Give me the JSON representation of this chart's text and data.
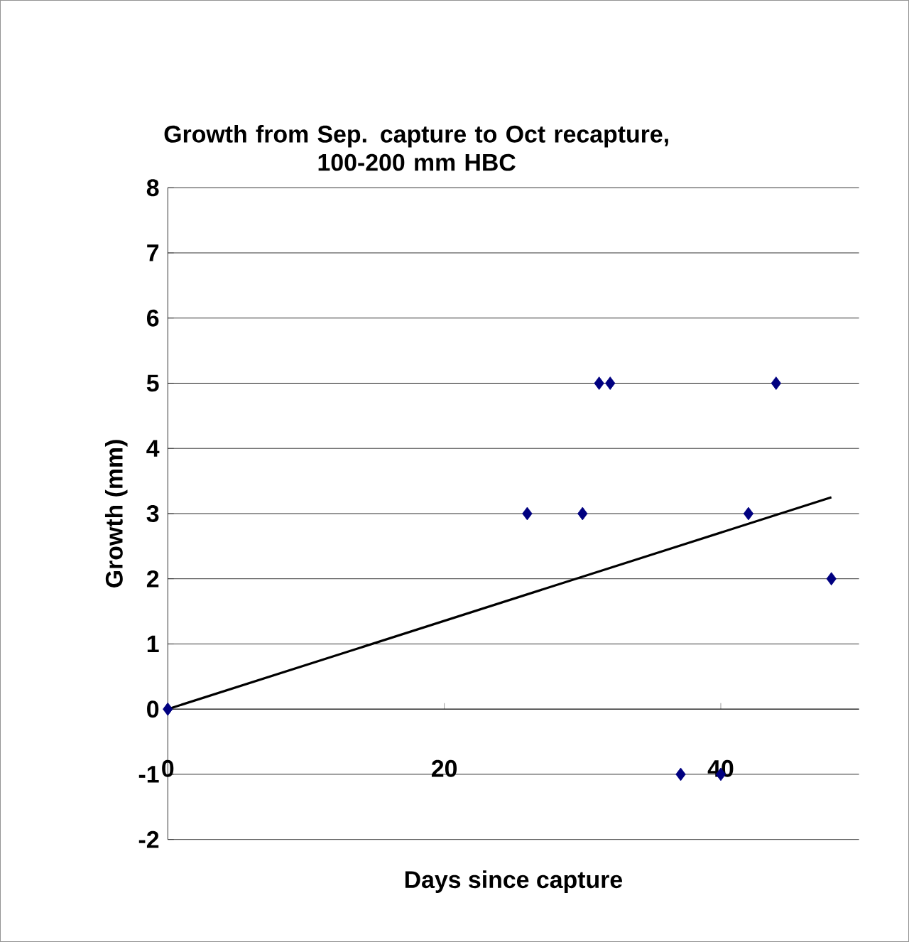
{
  "chart_data": {
    "type": "scatter",
    "title": "Growth from Sep. capture to Oct recapture,\n100-200 mm HBC",
    "xlabel": "Days since capture",
    "ylabel": "Growth (mm)",
    "xlim": [
      0,
      50
    ],
    "xticks": [
      0,
      20,
      40
    ],
    "ylim": [
      -2,
      8
    ],
    "yticks": [
      -2,
      -1,
      0,
      1,
      2,
      3,
      4,
      5,
      6,
      7,
      8
    ],
    "grid": "y",
    "marker": "diamond",
    "series": [
      {
        "color": "#000080",
        "x": [
          0,
          26,
          30,
          31.2,
          32,
          37.1,
          40,
          42,
          44,
          48
        ],
        "values": [
          0,
          3,
          3,
          5,
          5,
          -1,
          -1,
          3,
          5,
          2
        ]
      },
      {
        "type": "line",
        "marker": "none",
        "color": "#000000",
        "x": [
          0,
          48
        ],
        "values": [
          0,
          3.25
        ]
      }
    ]
  }
}
